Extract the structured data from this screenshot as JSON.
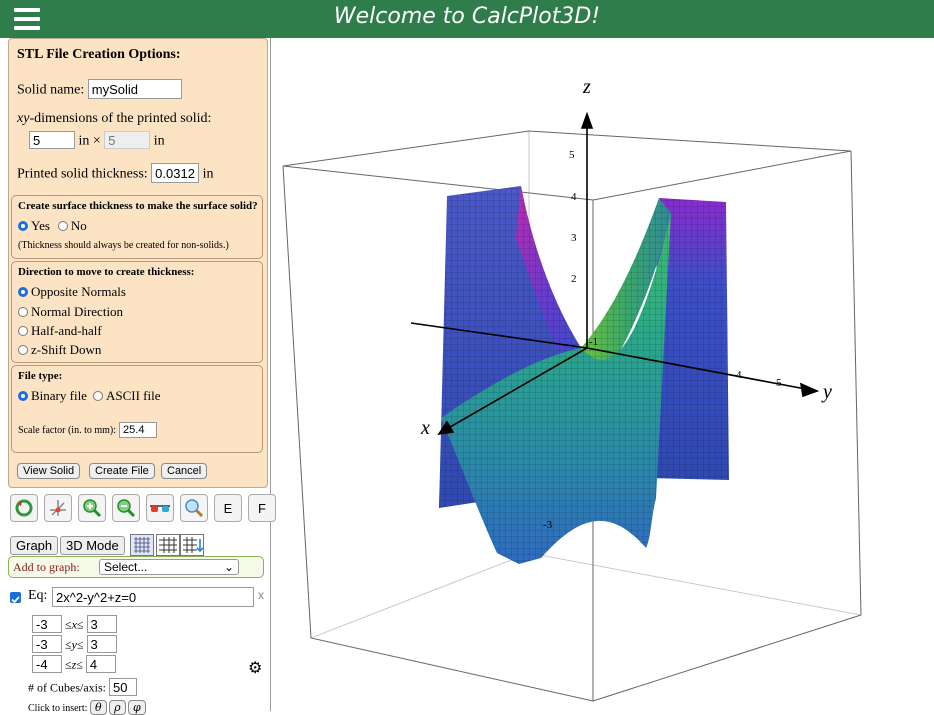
{
  "app": {
    "title": "Welcome to CalcPlot3D!"
  },
  "stl": {
    "heading": "STL File Creation Options:",
    "solid_name_label": "Solid name:",
    "solid_name_value": "mySolid",
    "xy_dim_label_var": "xy",
    "xy_dim_label_rest": "-dimensions of the printed solid:",
    "x_dim": "5",
    "in_times": "in ×",
    "y_dim": "5",
    "in": "in",
    "thickness_label": "Printed solid thickness:",
    "thickness_value": "0.0312",
    "thickness_unit": "in",
    "surface_thickness": {
      "heading": "Create surface thickness to make the surface solid?",
      "yes": "Yes",
      "no": "No",
      "note": "(Thickness should always be created for non-solids.)"
    },
    "direction": {
      "heading": "Direction to move to create thickness:",
      "options": [
        "Opposite Normals",
        "Normal Direction",
        "Half-and-half",
        "z-Shift Down"
      ]
    },
    "file_type": {
      "heading": "File type:",
      "binary": "Binary file",
      "ascii": "ASCII file",
      "scale_label": "Scale factor (in. to mm):",
      "scale_value": "25.4"
    },
    "buttons": {
      "view": "View Solid",
      "create": "Create File",
      "cancel": "Cancel"
    }
  },
  "toolbar": {
    "e": "E",
    "f": "F"
  },
  "modes": {
    "graph": "Graph",
    "mode3d": "3D Mode"
  },
  "add_to_graph": {
    "label": "Add to graph:",
    "select": "Select..."
  },
  "equation": {
    "label": "Eq:",
    "value": "2x^2-y^2+z=0",
    "remove": "x",
    "ranges": [
      {
        "min": "-3",
        "var": "x",
        "max": "3"
      },
      {
        "min": "-3",
        "var": "y",
        "max": "3"
      },
      {
        "min": "-4",
        "var": "z",
        "max": "4"
      }
    ],
    "le": "≤",
    "cubes_label": "# of Cubes/axis:",
    "cubes_value": "50",
    "insert_label": "Click to insert:",
    "insert_symbols": [
      "θ",
      "ρ",
      "φ"
    ]
  },
  "plot": {
    "axis_labels": {
      "x": "x",
      "y": "y",
      "z": "z"
    },
    "z_ticks": [
      "5",
      "4",
      "3",
      "2",
      "-1"
    ],
    "y_ticks": [
      "4",
      "5"
    ],
    "neg_tick": "-3"
  }
}
